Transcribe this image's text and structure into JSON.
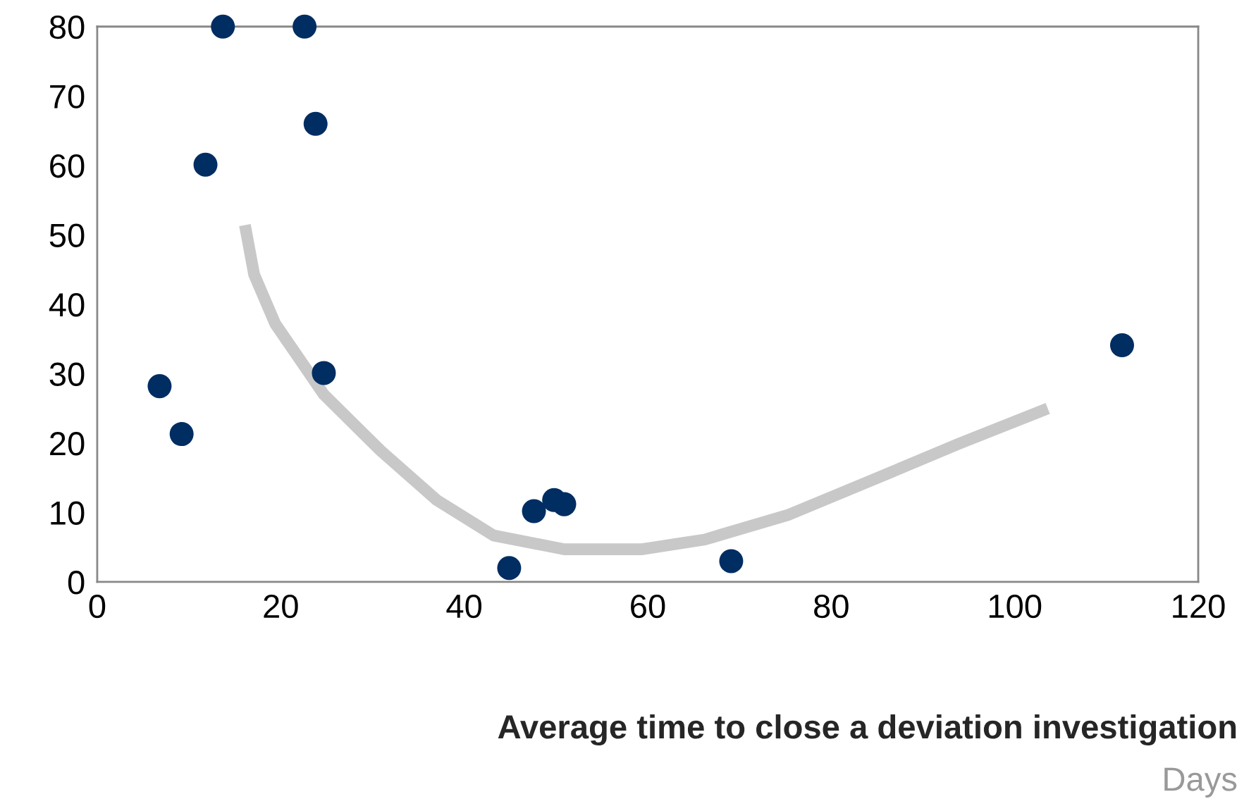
{
  "chart_data": {
    "type": "scatter",
    "xlabel": "Average time to close a deviation investigation",
    "annotations": [
      "Days"
    ],
    "xlim": [
      0,
      120
    ],
    "ylim": [
      0,
      80
    ],
    "xticks": [
      0,
      20,
      40,
      60,
      80,
      100,
      120
    ],
    "yticks": [
      0,
      10,
      20,
      30,
      40,
      50,
      60,
      70,
      80
    ],
    "grid": false,
    "legend": false,
    "marker": "circle",
    "series": [
      {
        "color": "#002d62",
        "x": [
          6.8,
          9.2,
          11.8,
          13.7,
          22.6,
          23.8,
          24.7,
          44.9,
          47.6,
          49.8,
          50.9,
          69.1,
          111.7
        ],
        "values": [
          28.2,
          21.3,
          60.1,
          80,
          80,
          66,
          30.1,
          2.0,
          10.2,
          11.8,
          11.2,
          3.0,
          34.1
        ]
      },
      {
        "type": "line",
        "color": "#c8c8c8",
        "marker": "none",
        "line_style": "solid",
        "x": [
          16.1,
          17.1,
          19.4,
          24.7,
          30.9,
          37,
          43.2,
          50.9,
          59.3,
          66.2,
          75.4,
          84.7,
          93.9,
          103.6
        ],
        "values": [
          51.4,
          44.3,
          37.2,
          27,
          18.9,
          11.8,
          6.7,
          4.7,
          4.7,
          6.1,
          9.7,
          14.8,
          19.9,
          25
        ]
      }
    ]
  }
}
